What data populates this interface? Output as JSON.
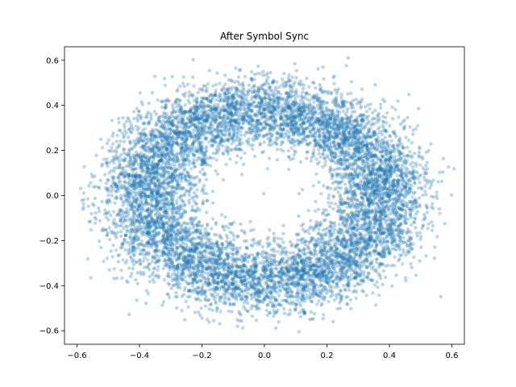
{
  "chart_data": {
    "type": "scatter",
    "title": "After Symbol Sync",
    "xlabel": "",
    "ylabel": "",
    "xlim": [
      -0.64,
      0.64
    ],
    "ylim": [
      -0.66,
      0.66
    ],
    "x_ticks": [
      -0.6,
      -0.4,
      -0.2,
      0.0,
      0.2,
      0.4,
      0.6
    ],
    "x_tick_labels": [
      "−0.6",
      "−0.4",
      "−0.2",
      "0.0",
      "0.2",
      "0.4",
      "0.6"
    ],
    "y_ticks": [
      0.6,
      0.4,
      0.2,
      0.0,
      -0.2,
      -0.4,
      -0.6
    ],
    "y_tick_labels": [
      "0.6",
      "0.4",
      "0.2",
      "0.0",
      "−0.2",
      "−0.4",
      "−0.6"
    ],
    "grid": false,
    "marker_color": "#1f77b4",
    "marker_alpha": 0.3,
    "series": [
      {
        "distribution": "annulus",
        "center": [
          0.0,
          0.0
        ],
        "inner_radius": 0.22,
        "outer_radius": 0.55,
        "approx_points": 20000
      }
    ]
  }
}
